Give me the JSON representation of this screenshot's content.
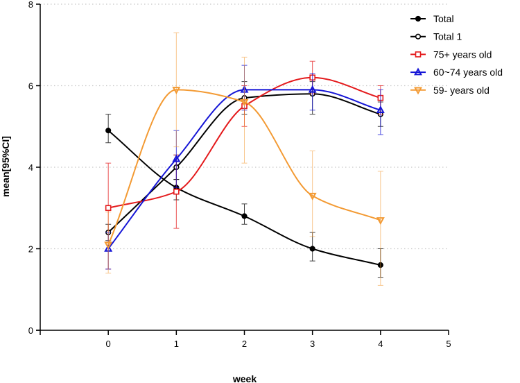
{
  "chart_data": {
    "type": "line",
    "xlabel": "week",
    "ylabel": "mean[95%CI]",
    "xlim": [
      -1,
      5
    ],
    "ylim": [
      0,
      8
    ],
    "x_ticks": [
      0,
      1,
      2,
      3,
      4,
      5
    ],
    "y_ticks": [
      0,
      2,
      4,
      6,
      8
    ],
    "grid": "horizontal-dotted",
    "legend_position": "top-right",
    "series": [
      {
        "name": "Total",
        "color": "#000000",
        "marker": "filled-circle",
        "x": [
          0,
          1,
          2,
          3,
          4
        ],
        "values": [
          4.9,
          3.5,
          2.8,
          2.0,
          1.6
        ],
        "ci_low": [
          4.6,
          3.2,
          2.6,
          1.7,
          1.3
        ],
        "ci_high": [
          5.3,
          3.7,
          3.1,
          2.4,
          2.0
        ]
      },
      {
        "name": "Total 1",
        "color": "#000000",
        "marker": "open-circle",
        "x": [
          0,
          1,
          2,
          3,
          4
        ],
        "values": [
          2.4,
          4.0,
          5.7,
          5.8,
          5.3
        ],
        "ci_low": [
          2.2,
          3.7,
          5.3,
          5.3,
          5.0
        ],
        "ci_high": [
          2.6,
          4.3,
          6.1,
          6.1,
          5.6
        ]
      },
      {
        "name": "75+ years old",
        "color": "#e41a1c",
        "marker": "open-square",
        "x": [
          0,
          1,
          2,
          3,
          4
        ],
        "values": [
          3.0,
          3.4,
          5.5,
          6.2,
          5.7
        ],
        "ci_low": [
          1.5,
          2.5,
          5.0,
          5.8,
          5.3
        ],
        "ci_high": [
          4.1,
          4.3,
          6.0,
          6.6,
          6.0
        ]
      },
      {
        "name": "60~74 years old",
        "color": "#1515d6",
        "marker": "triangle-up",
        "x": [
          0,
          1,
          2,
          3,
          4
        ],
        "values": [
          2.0,
          4.2,
          5.9,
          5.9,
          5.4
        ],
        "ci_low": [
          1.5,
          3.5,
          5.4,
          5.4,
          4.8
        ],
        "ci_high": [
          2.4,
          4.9,
          6.5,
          6.3,
          5.9
        ]
      },
      {
        "name": "59- years old",
        "color": "#f39a33",
        "marker": "triangle-down",
        "x": [
          0,
          1,
          2,
          3,
          4
        ],
        "values": [
          2.1,
          5.9,
          5.6,
          3.3,
          2.7
        ],
        "ci_low": [
          1.4,
          4.5,
          4.1,
          2.3,
          1.1
        ],
        "ci_high": [
          2.9,
          7.3,
          6.7,
          4.4,
          3.9
        ]
      }
    ]
  }
}
